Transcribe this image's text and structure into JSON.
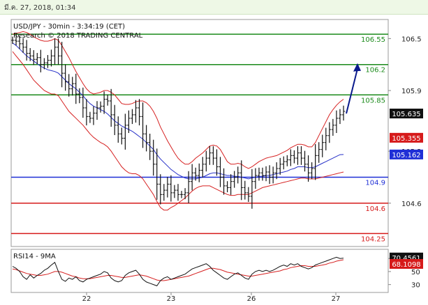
{
  "header": {
    "timestamp": "มี.ค. 27, 2018, 01:34"
  },
  "chart_data": {
    "type": "line",
    "title": "USD/JPY - 30min - 3:34:19 (CET)",
    "subtitle": "Research © 2018 TRADING CENTRAL",
    "y_ticks": [
      "106.5",
      "105.9",
      "105.2",
      "104.6"
    ],
    "x_ticks": [
      "22",
      "23",
      "26",
      "27"
    ],
    "levels": [
      {
        "label": "106.55",
        "value": 106.55,
        "color": "#1a8a1a"
      },
      {
        "label": "106.2",
        "value": 106.2,
        "color": "#1a8a1a"
      },
      {
        "label": "105.85",
        "value": 105.85,
        "color": "#1a8a1a"
      },
      {
        "label": "104.9",
        "value": 104.9,
        "color": "#1f2fd6"
      },
      {
        "label": "104.6",
        "value": 104.6,
        "color": "#d61a1a"
      },
      {
        "label": "104.25",
        "value": 104.25,
        "color": "#d61a1a"
      }
    ],
    "price_tags": [
      {
        "label": "105.635",
        "value": 105.635,
        "bg": "#111111",
        "fg": "#ffffff"
      },
      {
        "label": "105.355",
        "value": 105.355,
        "bg": "#d61a1a",
        "fg": "#ffffff"
      },
      {
        "label": "105.162",
        "value": 105.162,
        "bg": "#1f2fd6",
        "fg": "#ffffff"
      }
    ],
    "ylim": [
      104.1,
      106.72
    ],
    "price": [
      106.48,
      106.47,
      106.44,
      106.4,
      106.33,
      106.3,
      106.26,
      106.28,
      106.2,
      106.22,
      106.25,
      106.3,
      106.4,
      106.3,
      106.1,
      106.0,
      105.92,
      105.98,
      105.86,
      105.82,
      105.7,
      105.6,
      105.58,
      105.64,
      105.7,
      105.72,
      105.8,
      105.78,
      105.62,
      105.5,
      105.4,
      105.35,
      105.5,
      105.58,
      105.62,
      105.7,
      105.6,
      105.4,
      105.3,
      105.2,
      105.05,
      104.82,
      104.7,
      104.75,
      104.82,
      104.72,
      104.75,
      104.7,
      104.7,
      104.72,
      104.85,
      104.95,
      104.92,
      104.98,
      105.05,
      105.12,
      105.18,
      105.12,
      105.02,
      104.9,
      104.8,
      104.78,
      104.85,
      104.9,
      104.95,
      104.78,
      104.72,
      104.68,
      104.85,
      104.92,
      104.95,
      104.92,
      104.96,
      104.9,
      104.95,
      105.0,
      105.05,
      105.08,
      105.1,
      105.15,
      105.12,
      105.18,
      105.12,
      105.05,
      104.95,
      105.0,
      105.15,
      105.22,
      105.3,
      105.38,
      105.45,
      105.5,
      105.58,
      105.62,
      105.66
    ],
    "sma": [
      106.45,
      106.42,
      106.38,
      106.34,
      106.3,
      106.27,
      106.24,
      106.21,
      106.18,
      106.16,
      106.14,
      106.13,
      106.12,
      106.1,
      106.06,
      106.02,
      105.98,
      105.95,
      105.92,
      105.88,
      105.84,
      105.79,
      105.75,
      105.72,
      105.7,
      105.68,
      105.66,
      105.63,
      105.59,
      105.55,
      105.52,
      105.49,
      105.47,
      105.45,
      105.43,
      105.4,
      105.37,
      105.34,
      105.3,
      105.26,
      105.22,
      105.16,
      105.11,
      105.07,
      105.03,
      104.99,
      104.96,
      104.93,
      104.91,
      104.89,
      104.88,
      104.88,
      104.88,
      104.89,
      104.9,
      104.92,
      104.94,
      104.95,
      104.95,
      104.94,
      104.93,
      104.92,
      104.92,
      104.91,
      104.91,
      104.9,
      104.89,
      104.88,
      104.89,
      104.9,
      104.91,
      104.91,
      104.92,
      104.92,
      104.93,
      104.94,
      104.95,
      104.96,
      104.97,
      104.99,
      105.0,
      105.02,
      105.02,
      105.02,
      105.01,
      105.01,
      105.02,
      105.04,
      105.06,
      105.08,
      105.1,
      105.12,
      105.14,
      105.16,
      105.162
    ],
    "bb_upper": [
      106.55,
      106.56,
      106.57,
      106.58,
      106.57,
      106.55,
      106.52,
      106.5,
      106.48,
      106.47,
      106.47,
      106.48,
      106.5,
      106.48,
      106.42,
      106.35,
      106.28,
      106.2,
      106.12,
      106.05,
      105.98,
      105.92,
      105.88,
      105.86,
      105.87,
      105.88,
      105.9,
      105.9,
      105.88,
      105.85,
      105.8,
      105.75,
      105.74,
      105.74,
      105.75,
      105.77,
      105.78,
      105.78,
      105.76,
      105.72,
      105.66,
      105.58,
      105.48,
      105.4,
      105.32,
      105.25,
      105.18,
      105.12,
      105.08,
      105.05,
      105.05,
      105.08,
      105.12,
      105.15,
      105.18,
      105.22,
      105.26,
      105.27,
      105.26,
      105.22,
      105.15,
      105.08,
      105.05,
      105.05,
      105.06,
      105.05,
      105.02,
      105.0,
      105.02,
      105.05,
      105.08,
      105.1,
      105.12,
      105.13,
      105.14,
      105.15,
      105.17,
      105.19,
      105.21,
      105.24,
      105.26,
      105.28,
      105.28,
      105.27,
      105.25,
      105.25,
      105.3,
      105.38,
      105.46,
      105.54,
      105.62,
      105.68,
      105.73,
      105.77,
      105.8
    ],
    "bb_lower": [
      106.35,
      106.3,
      106.25,
      106.2,
      106.14,
      106.08,
      106.02,
      105.98,
      105.94,
      105.9,
      105.88,
      105.86,
      105.86,
      105.84,
      105.78,
      105.72,
      105.66,
      105.62,
      105.58,
      105.54,
      105.5,
      105.45,
      105.4,
      105.36,
      105.33,
      105.3,
      105.28,
      105.25,
      105.2,
      105.14,
      105.08,
      105.02,
      104.98,
      104.95,
      104.94,
      104.94,
      104.92,
      104.88,
      104.82,
      104.76,
      104.7,
      104.62,
      104.55,
      104.52,
      104.52,
      104.55,
      104.57,
      104.6,
      104.63,
      104.66,
      104.7,
      104.74,
      104.77,
      104.79,
      104.8,
      104.8,
      104.8,
      104.78,
      104.76,
      104.74,
      104.72,
      104.7,
      104.69,
      104.69,
      104.7,
      104.7,
      104.7,
      104.7,
      104.72,
      104.74,
      104.76,
      104.78,
      104.79,
      104.8,
      104.81,
      104.82,
      104.83,
      104.84,
      104.85,
      104.86,
      104.87,
      104.88,
      104.89,
      104.89,
      104.88,
      104.88,
      104.88,
      104.89,
      104.9,
      104.91,
      104.92,
      104.93,
      104.94,
      104.95,
      104.96
    ],
    "forecast_arrow": {
      "from": 105.635,
      "to": 106.2
    },
    "rsi": {
      "label": "RSI14 - 9MA",
      "ticks": [
        "70",
        "50",
        "30"
      ],
      "ylim": [
        20,
        82
      ],
      "tags": [
        {
          "label": "70.4561",
          "value": 70.4561,
          "bg": "#111111",
          "fg": "#ffffff"
        },
        {
          "label": "68.1098",
          "value": 68.1098,
          "bg": "#d61a1a",
          "fg": "#ffffff"
        }
      ],
      "values": [
        58,
        55,
        50,
        42,
        38,
        45,
        40,
        44,
        47,
        52,
        55,
        60,
        64,
        50,
        38,
        35,
        40,
        38,
        42,
        36,
        34,
        38,
        40,
        42,
        44,
        46,
        50,
        48,
        40,
        36,
        34,
        36,
        44,
        48,
        50,
        52,
        46,
        38,
        34,
        32,
        30,
        28,
        36,
        40,
        42,
        38,
        40,
        42,
        44,
        46,
        50,
        54,
        56,
        58,
        60,
        62,
        58,
        52,
        48,
        44,
        40,
        38,
        42,
        46,
        48,
        44,
        40,
        38,
        46,
        50,
        52,
        50,
        52,
        50,
        52,
        55,
        58,
        60,
        58,
        62,
        60,
        62,
        58,
        56,
        54,
        56,
        60,
        62,
        64,
        66,
        68,
        70,
        72,
        70,
        70.4561
      ],
      "ma": [
        54,
        53,
        51,
        49,
        47,
        46,
        45,
        44,
        44,
        45,
        46,
        48,
        50,
        50,
        49,
        47,
        45,
        43,
        42,
        40,
        39,
        39,
        39,
        40,
        41,
        42,
        43,
        44,
        44,
        43,
        42,
        41,
        41,
        42,
        43,
        44,
        45,
        44,
        43,
        41,
        39,
        37,
        36,
        36,
        37,
        38,
        39,
        40,
        41,
        42,
        43,
        45,
        47,
        49,
        51,
        53,
        55,
        55,
        54,
        53,
        51,
        49,
        48,
        47,
        46,
        45,
        44,
        43,
        43,
        44,
        45,
        46,
        47,
        48,
        49,
        50,
        51,
        53,
        54,
        56,
        57,
        58,
        59,
        59,
        58,
        58,
        58,
        59,
        60,
        61,
        63,
        64,
        66,
        67,
        68.1098
      ]
    }
  }
}
